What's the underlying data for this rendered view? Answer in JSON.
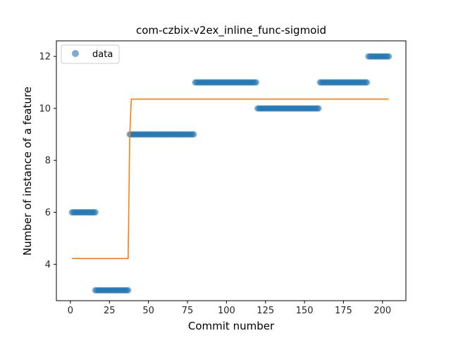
{
  "chart_data": {
    "type": "scatter",
    "title": "com-czbix-v2ex_inline_func-sigmoid",
    "xlabel": "Commit number",
    "ylabel": "Number of instance of a feature",
    "xlim": [
      -9,
      215
    ],
    "ylim": [
      2.6,
      12.6
    ],
    "xticks": [
      0,
      25,
      50,
      75,
      100,
      125,
      150,
      175,
      200
    ],
    "yticks": [
      4,
      6,
      8,
      10,
      12
    ],
    "grid": false,
    "legend": {
      "position": "top-left",
      "entries": [
        "data"
      ]
    },
    "colors": {
      "data": "#1f77b4",
      "fit": "#ff7f0e"
    },
    "series": [
      {
        "name": "data",
        "kind": "scatter",
        "segments": [
          {
            "x_start": 1,
            "x_end": 16,
            "y": 6
          },
          {
            "x_start": 16,
            "x_end": 37,
            "y": 3
          },
          {
            "x_start": 38,
            "x_end": 79,
            "y": 9
          },
          {
            "x_start": 80,
            "x_end": 119,
            "y": 11
          },
          {
            "x_start": 120,
            "x_end": 159,
            "y": 10
          },
          {
            "x_start": 160,
            "x_end": 190,
            "y": 11
          },
          {
            "x_start": 191,
            "x_end": 204,
            "y": 12
          }
        ]
      },
      {
        "kind": "line",
        "x": [
          1,
          37,
          38,
          39,
          204
        ],
        "y": [
          4.22,
          4.22,
          8.9,
          10.36,
          10.36
        ]
      }
    ]
  }
}
